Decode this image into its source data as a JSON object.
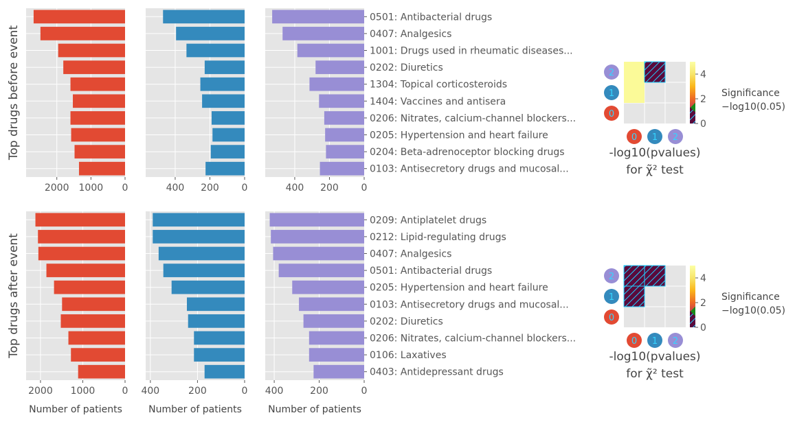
{
  "chart_data": {
    "type": "bar",
    "colors": {
      "group_0": "#e24a33",
      "group_1": "#348abd",
      "group_2": "#988ed5",
      "axes_bg": "#e5e5e5",
      "grid": "#ffffff",
      "text": "#555555",
      "label": "#444444",
      "hatch_cell": "#5a0a3c",
      "hatch_stroke": "#1fd0ff",
      "significance_marker": "#1a8a1a"
    },
    "xlabel": "Number of patients",
    "rows": [
      {
        "ylabel": "Top drugs before event",
        "categories": [
          "0501: Antibacterial drugs",
          "0407: Analgesics",
          "1001: Drugs used in rheumatic diseases...",
          "0202: Diuretics",
          "1304: Topical corticosteroids",
          "1404: Vaccines and antisera",
          "0206: Nitrates, calcium-channel blockers...",
          "0205: Hypertension and heart failure",
          "0204: Beta-adrenoceptor blocking drugs",
          "0103: Antisecretory drugs and mucosal..."
        ],
        "panels": [
          {
            "group": 0,
            "xlim": [
              0,
              2900
            ],
            "ticks": [
              2000,
              1000,
              0
            ],
            "values": [
              2680,
              2480,
              1960,
              1810,
              1600,
              1530,
              1600,
              1580,
              1480,
              1350
            ]
          },
          {
            "group": 1,
            "xlim": [
              0,
              570
            ],
            "ticks": [
              400,
              200,
              0
            ],
            "values": [
              470,
              395,
              335,
              230,
              255,
              245,
              190,
              185,
              195,
              225
            ]
          },
          {
            "group": 2,
            "xlim": [
              0,
              570
            ],
            "ticks": [
              400,
              200,
              0
            ],
            "values": [
              530,
              470,
              385,
              280,
              315,
              260,
              230,
              225,
              220,
              255
            ]
          }
        ],
        "heatmap": {
          "title_line1": "-log10(pvalues)",
          "title_line2": "for χ̃² test",
          "labels": [
            "0",
            "1",
            "2"
          ],
          "cells": [
            {
              "row": 2,
              "col": 0,
              "type": "value",
              "value": 4.8
            },
            {
              "row": 2,
              "col": 1,
              "type": "hatch"
            },
            {
              "row": 1,
              "col": 0,
              "type": "value",
              "value": 4.8
            }
          ],
          "colorbar": {
            "ticks": [
              0,
              2,
              4
            ],
            "max": 5,
            "threshold": 1.3,
            "label1": "Significance",
            "label2": "−log10(0.05)"
          }
        }
      },
      {
        "ylabel": "Top drugs after event",
        "categories": [
          "0209: Antiplatelet drugs",
          "0212: Lipid-regulating drugs",
          "0407: Analgesics",
          "0501: Antibacterial drugs",
          "0205: Hypertension and heart failure",
          "0103: Antisecretory drugs and mucosal...",
          "0202: Diuretics",
          "0206: Nitrates, calcium-channel blockers...",
          "0106: Laxatives",
          "0403: Antidepressant drugs"
        ],
        "panels": [
          {
            "group": 0,
            "xlim": [
              0,
              2340
            ],
            "ticks": [
              2000,
              1000,
              0
            ],
            "values": [
              2120,
              2060,
              2050,
              1860,
              1680,
              1490,
              1520,
              1340,
              1280,
              1110
            ]
          },
          {
            "group": 1,
            "xlim": [
              0,
              420
            ],
            "ticks": [
              400,
              200,
              0
            ],
            "values": [
              390,
              390,
              365,
              345,
              310,
              245,
              240,
              215,
              215,
              170
            ]
          },
          {
            "group": 2,
            "xlim": [
              0,
              440
            ],
            "ticks": [
              400,
              200,
              0
            ],
            "values": [
              420,
              415,
              405,
              380,
              320,
              290,
              270,
              245,
              245,
              225
            ]
          }
        ],
        "heatmap": {
          "title_line1": "-log10(pvalues)",
          "title_line2": "for χ̃² test",
          "labels": [
            "0",
            "1",
            "2"
          ],
          "cells": [
            {
              "row": 2,
              "col": 0,
              "type": "hatch"
            },
            {
              "row": 2,
              "col": 1,
              "type": "hatch"
            },
            {
              "row": 1,
              "col": 0,
              "type": "hatch"
            }
          ],
          "colorbar": {
            "ticks": [
              0,
              2,
              4
            ],
            "max": 5,
            "threshold": 1.3,
            "label1": "Significance",
            "label2": "−log10(0.05)"
          }
        }
      }
    ]
  }
}
